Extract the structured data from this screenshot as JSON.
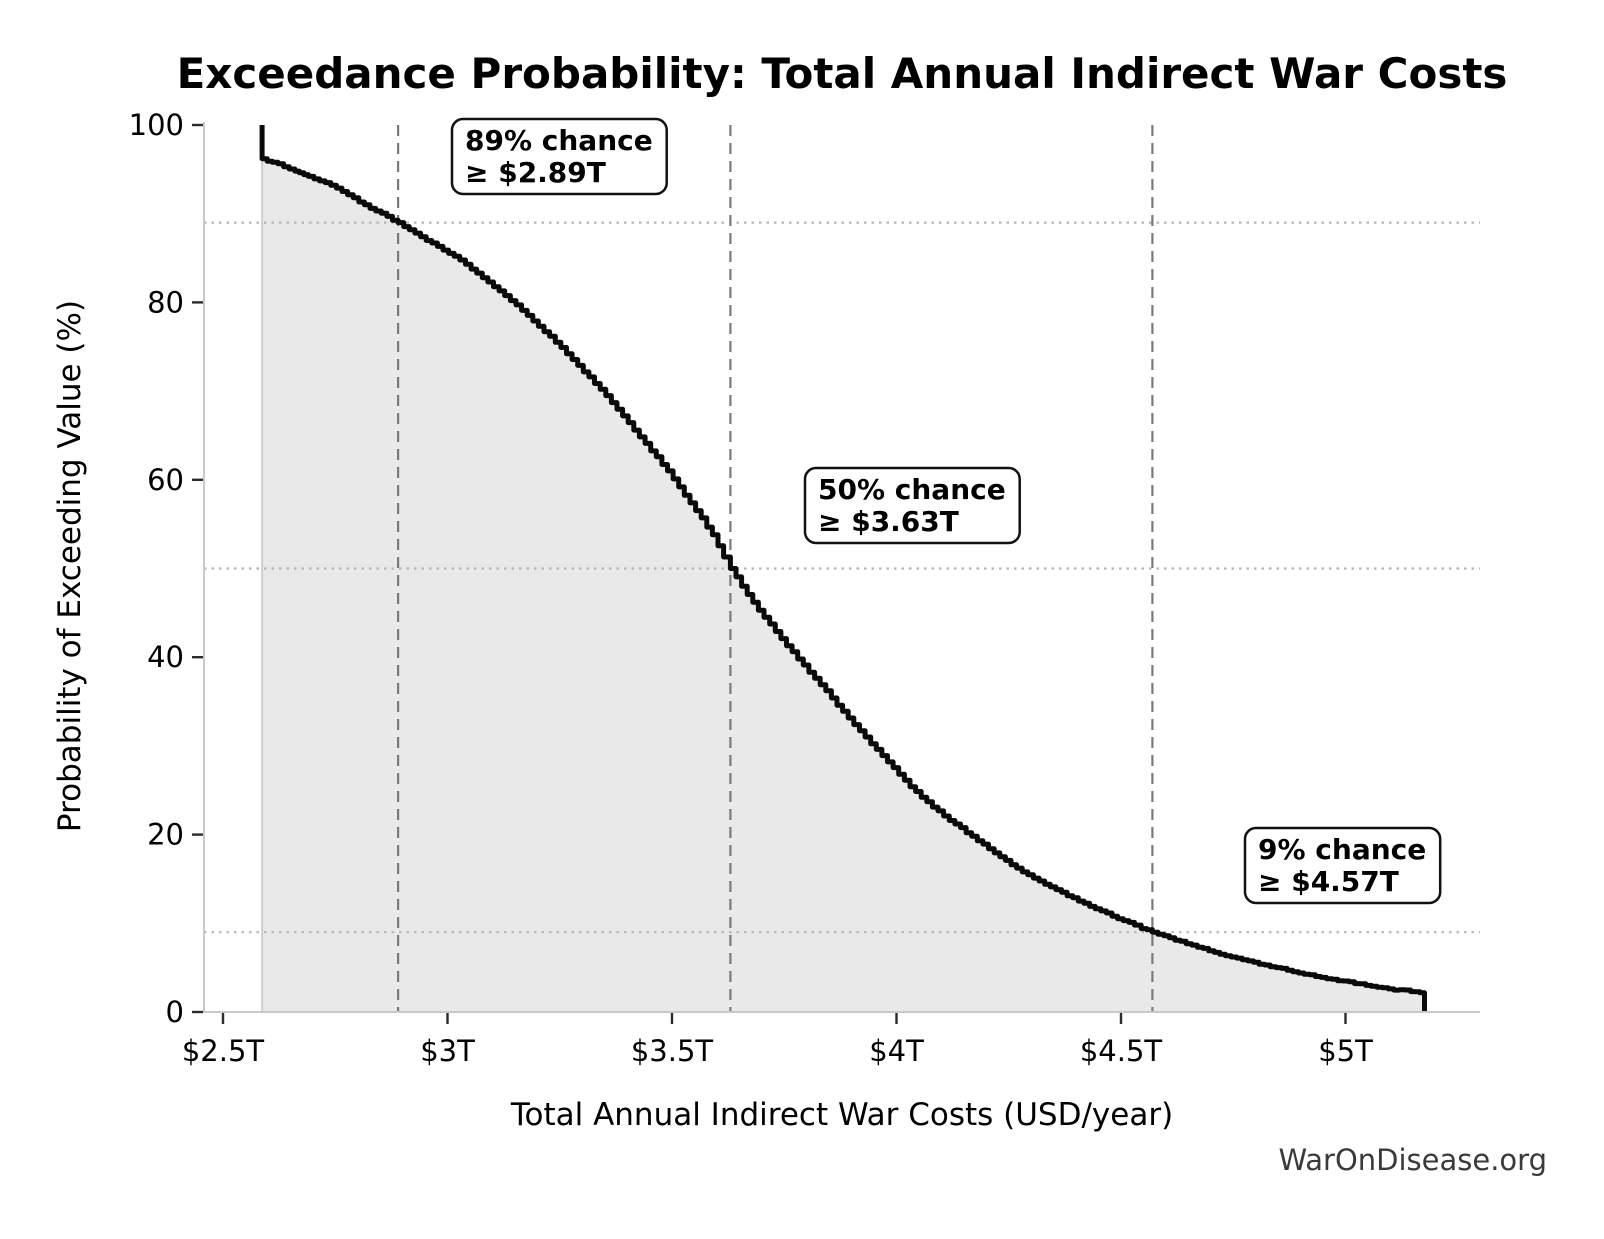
{
  "chart_data": {
    "type": "area",
    "title": "Exceedance Probability: Total Annual Indirect War Costs",
    "xlabel": "Total Annual Indirect War Costs (USD/year)",
    "ylabel": "Probability of Exceeding Value (%)",
    "source": "WarOnDisease.org",
    "xlim": [
      2.46,
      5.3
    ],
    "ylim": [
      0,
      100
    ],
    "grid": "dotted horizontal reference lines at annotated probabilities; dashed vertical lines at annotated cost thresholds",
    "legend": null,
    "x_ticks": [
      {
        "value": 2.5,
        "label": "$2.5T"
      },
      {
        "value": 3.0,
        "label": "$3T"
      },
      {
        "value": 3.5,
        "label": "$3.5T"
      },
      {
        "value": 4.0,
        "label": "$4T"
      },
      {
        "value": 4.5,
        "label": "$4.5T"
      },
      {
        "value": 5.0,
        "label": "$5T"
      }
    ],
    "y_ticks": [
      {
        "value": 0,
        "label": "0"
      },
      {
        "value": 20,
        "label": "20"
      },
      {
        "value": 40,
        "label": "40"
      },
      {
        "value": 60,
        "label": "60"
      },
      {
        "value": 80,
        "label": "80"
      },
      {
        "value": 100,
        "label": "100"
      }
    ],
    "annotations": [
      {
        "prob": 89,
        "value": 2.89,
        "line1": "89% chance",
        "line2": "≥ $2.89T"
      },
      {
        "prob": 50,
        "value": 3.63,
        "line1": "50% chance",
        "line2": "≥ $3.63T"
      },
      {
        "prob": 9,
        "value": 4.57,
        "line1": "9% chance",
        "line2": "≥ $4.57T"
      }
    ],
    "curve": [
      [
        2.587,
        100
      ],
      [
        2.587,
        96.2
      ],
      [
        2.61,
        95.8
      ],
      [
        2.635,
        95.3
      ],
      [
        2.66,
        94.8
      ],
      [
        2.69,
        94.2
      ],
      [
        2.715,
        93.7
      ],
      [
        2.74,
        93.2
      ],
      [
        2.765,
        92.5
      ],
      [
        2.79,
        91.8
      ],
      [
        2.815,
        91.0
      ],
      [
        2.84,
        90.3
      ],
      [
        2.865,
        89.7
      ],
      [
        2.89,
        89.0
      ],
      [
        2.915,
        88.2
      ],
      [
        2.94,
        87.4
      ],
      [
        2.965,
        86.7
      ],
      [
        2.99,
        85.9
      ],
      [
        3.015,
        85.2
      ],
      [
        3.04,
        84.3
      ],
      [
        3.065,
        83.3
      ],
      [
        3.09,
        82.3
      ],
      [
        3.115,
        81.3
      ],
      [
        3.14,
        80.2
      ],
      [
        3.165,
        79.1
      ],
      [
        3.19,
        77.9
      ],
      [
        3.215,
        76.7
      ],
      [
        3.24,
        75.5
      ],
      [
        3.265,
        74.2
      ],
      [
        3.29,
        72.9
      ],
      [
        3.315,
        71.6
      ],
      [
        3.34,
        70.2
      ],
      [
        3.365,
        68.7
      ],
      [
        3.39,
        67.2
      ],
      [
        3.415,
        65.6
      ],
      [
        3.44,
        64.1
      ],
      [
        3.465,
        62.6
      ],
      [
        3.49,
        61.0
      ],
      [
        3.515,
        59.2
      ],
      [
        3.54,
        57.4
      ],
      [
        3.565,
        55.7
      ],
      [
        3.59,
        53.8
      ],
      [
        3.615,
        51.3
      ],
      [
        3.63,
        50.0
      ],
      [
        3.655,
        48.0
      ],
      [
        3.68,
        46.2
      ],
      [
        3.705,
        44.5
      ],
      [
        3.73,
        42.9
      ],
      [
        3.755,
        41.3
      ],
      [
        3.78,
        39.8
      ],
      [
        3.805,
        38.3
      ],
      [
        3.83,
        36.9
      ],
      [
        3.855,
        35.4
      ],
      [
        3.88,
        33.9
      ],
      [
        3.905,
        32.4
      ],
      [
        3.93,
        31.0
      ],
      [
        3.955,
        29.6
      ],
      [
        3.98,
        28.2
      ],
      [
        4.005,
        26.8
      ],
      [
        4.03,
        25.4
      ],
      [
        4.055,
        24.2
      ],
      [
        4.08,
        23.1
      ],
      [
        4.105,
        22.1
      ],
      [
        4.13,
        21.2
      ],
      [
        4.155,
        20.2
      ],
      [
        4.18,
        19.3
      ],
      [
        4.205,
        18.4
      ],
      [
        4.23,
        17.5
      ],
      [
        4.255,
        16.6
      ],
      [
        4.28,
        15.8
      ],
      [
        4.305,
        15.1
      ],
      [
        4.33,
        14.4
      ],
      [
        4.355,
        13.8
      ],
      [
        4.38,
        13.1
      ],
      [
        4.405,
        12.5
      ],
      [
        4.43,
        11.9
      ],
      [
        4.455,
        11.4
      ],
      [
        4.48,
        10.8
      ],
      [
        4.505,
        10.3
      ],
      [
        4.53,
        9.8
      ],
      [
        4.545,
        9.4
      ],
      [
        4.57,
        9.0
      ],
      [
        4.595,
        8.6
      ],
      [
        4.62,
        8.1
      ],
      [
        4.645,
        7.7
      ],
      [
        4.67,
        7.3
      ],
      [
        4.695,
        6.9
      ],
      [
        4.72,
        6.5
      ],
      [
        4.745,
        6.2
      ],
      [
        4.77,
        5.9
      ],
      [
        4.795,
        5.6
      ],
      [
        4.82,
        5.3
      ],
      [
        4.845,
        5.0
      ],
      [
        4.87,
        4.7
      ],
      [
        4.895,
        4.4
      ],
      [
        4.92,
        4.2
      ],
      [
        4.945,
        3.9
      ],
      [
        4.97,
        3.7
      ],
      [
        4.995,
        3.5
      ],
      [
        5.02,
        3.2
      ],
      [
        5.045,
        3.0
      ],
      [
        5.07,
        2.8
      ],
      [
        5.095,
        2.6
      ],
      [
        5.12,
        2.5
      ],
      [
        5.145,
        2.3
      ],
      [
        5.176,
        2.1
      ],
      [
        5.176,
        0
      ]
    ],
    "colors": {
      "curve": "#0a0a0a",
      "fill": "#e9e9e9",
      "fill_edge": "#cfcfcf",
      "threshold_dashed": "#7a7a7a",
      "reference_dotted": "#b5b5b5",
      "source_text": "#3a3a3a"
    }
  }
}
